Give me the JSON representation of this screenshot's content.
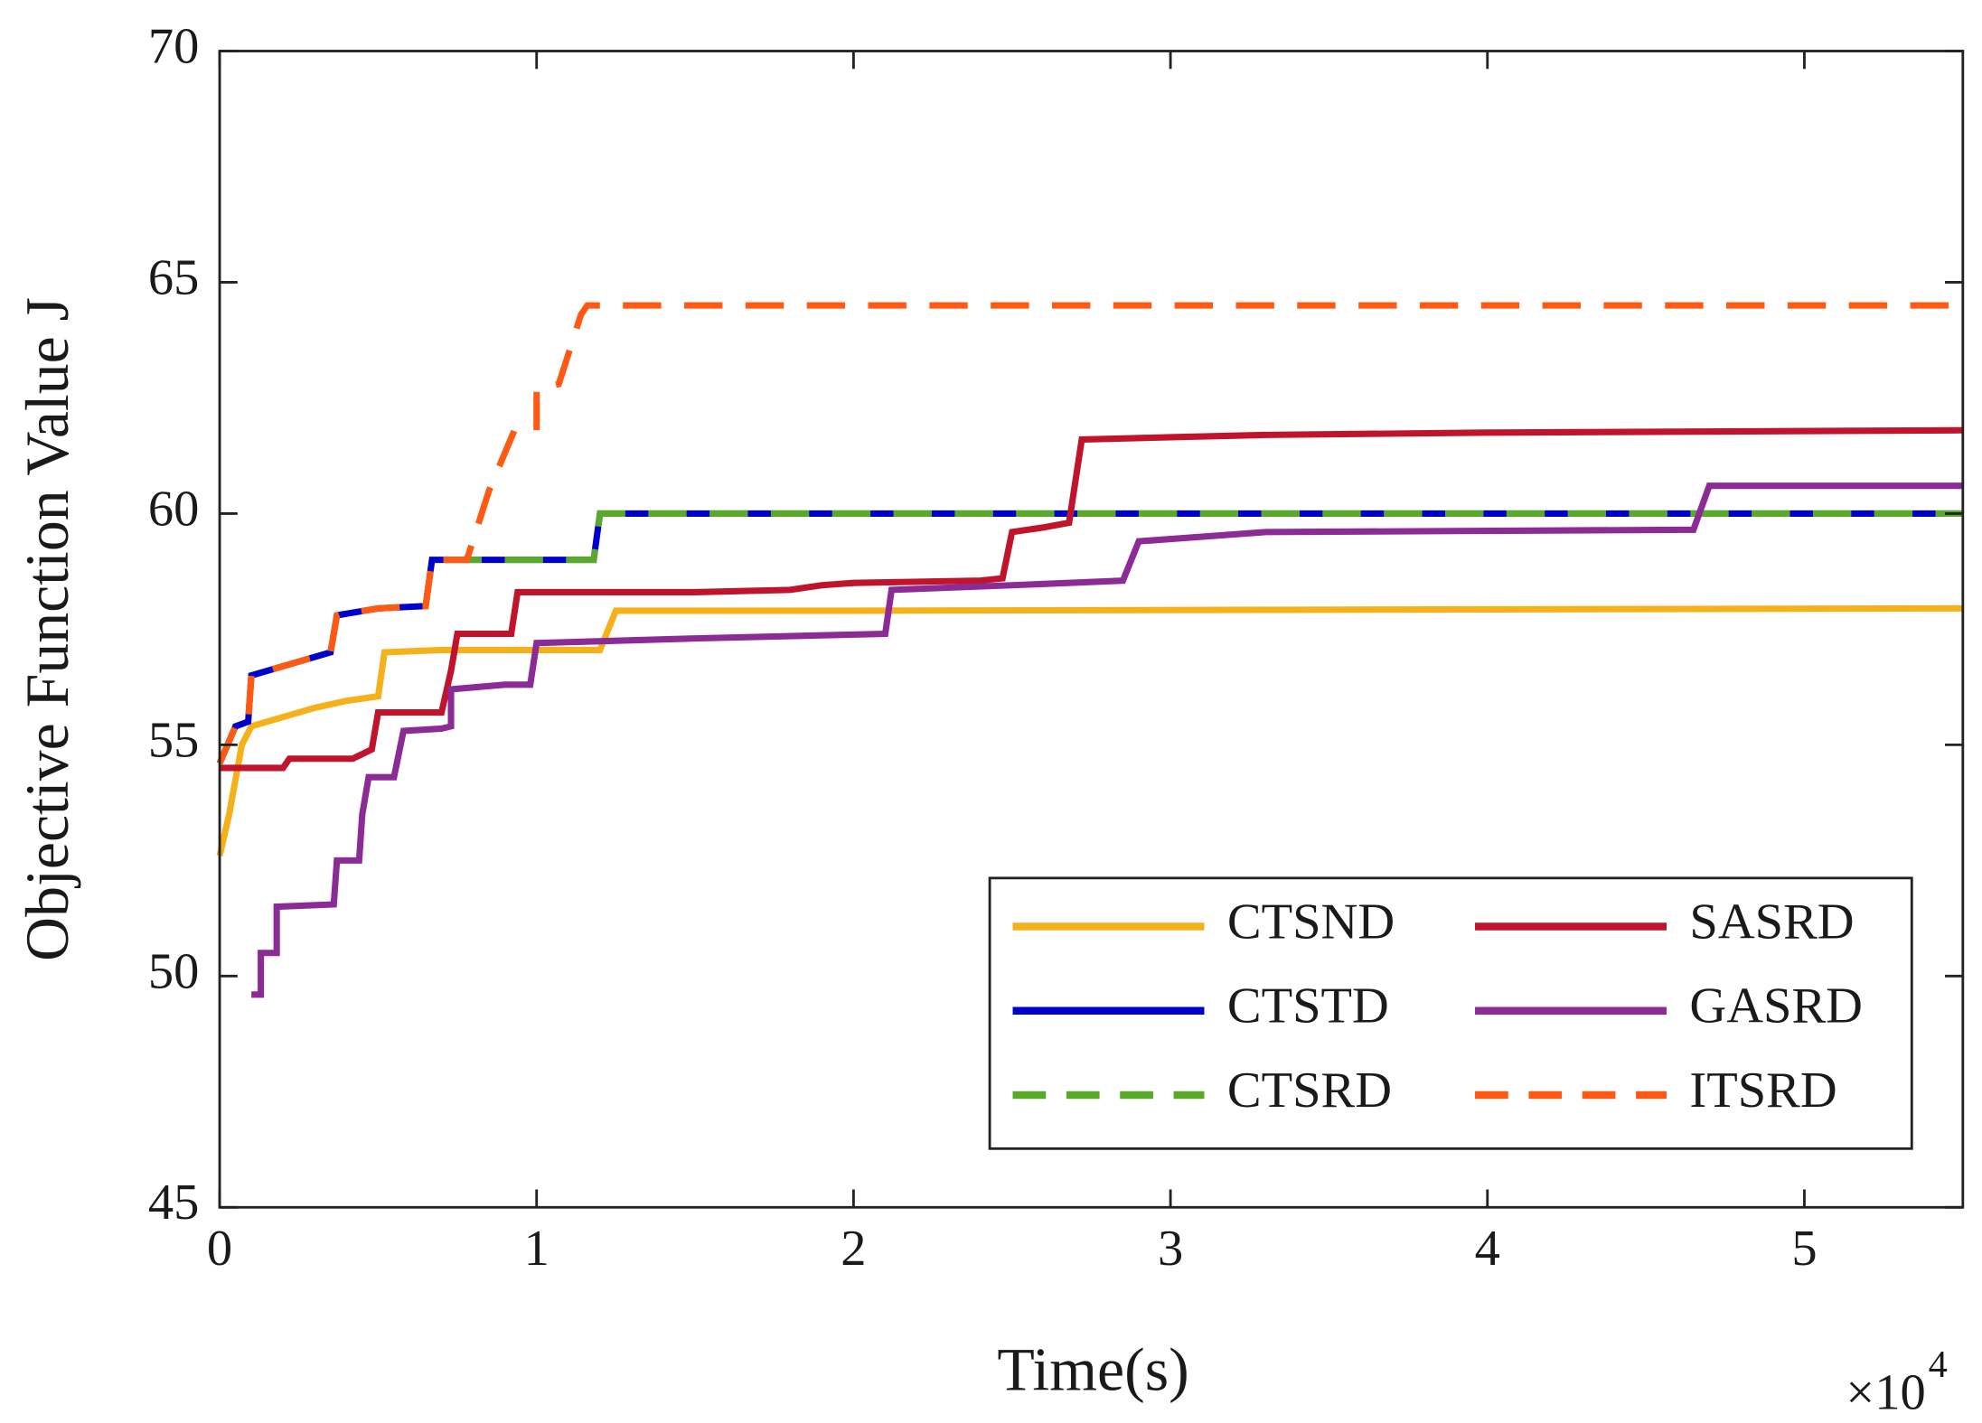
{
  "chart_data": {
    "type": "line",
    "xlabel": "Time(s)",
    "ylabel": "Objective Function Value J",
    "x_multiplier": "×10",
    "x_multiplier_exp": "4",
    "xlim": [
      0,
      5.5
    ],
    "xticks": [
      0,
      1,
      2,
      3,
      4,
      5
    ],
    "ylim": [
      45,
      70
    ],
    "yticks": [
      45,
      50,
      55,
      60,
      65,
      70
    ],
    "legend": "lower right",
    "series": [
      {
        "name": "CTSND",
        "color": "#f5b11a",
        "line_style": "solid",
        "x": [
          0,
          0.03,
          0.07,
          0.1,
          0.2,
          0.3,
          0.4,
          0.5,
          0.52,
          0.7,
          1.2,
          1.25,
          2,
          5.5
        ],
        "values": [
          52.6,
          53.5,
          55.0,
          55.4,
          55.6,
          55.8,
          55.95,
          56.05,
          57.0,
          57.05,
          57.05,
          57.9,
          57.9,
          57.95
        ]
      },
      {
        "name": "CTSTD",
        "color": "#0000cc",
        "line_style": "solid",
        "x": [
          0,
          0.05,
          0.09,
          0.1,
          0.2,
          0.35,
          0.37,
          0.5,
          0.65,
          0.67,
          1.18,
          1.2,
          5.5
        ],
        "values": [
          54.6,
          55.4,
          55.5,
          56.5,
          56.7,
          57.0,
          57.8,
          57.95,
          58.0,
          59.0,
          59.0,
          60.0,
          60.0
        ]
      },
      {
        "name": "CTSRD",
        "color": "#5aaa2a",
        "line_style": "dashed",
        "x": [
          0,
          0.05,
          0.09,
          0.1,
          0.2,
          0.35,
          0.37,
          0.5,
          0.65,
          0.67,
          1.18,
          1.2,
          5.5
        ],
        "values": [
          54.6,
          55.4,
          55.5,
          56.5,
          56.7,
          57.0,
          57.8,
          57.95,
          58.0,
          59.0,
          59.0,
          60.0,
          60.0
        ]
      },
      {
        "name": "SASRD",
        "color": "#c0142d",
        "line_style": "solid",
        "x": [
          0,
          0.2,
          0.22,
          0.42,
          0.48,
          0.5,
          0.7,
          0.73,
          0.75,
          0.92,
          0.94,
          1.5,
          1.8,
          1.9,
          2.0,
          2.4,
          2.47,
          2.5,
          2.6,
          2.68,
          2.72,
          3,
          3.3,
          4,
          5.5
        ],
        "values": [
          54.5,
          54.5,
          54.7,
          54.7,
          54.9,
          55.7,
          55.7,
          56.6,
          57.4,
          57.4,
          58.3,
          58.3,
          58.35,
          58.45,
          58.5,
          58.55,
          58.6,
          59.6,
          59.7,
          59.8,
          61.6,
          61.65,
          61.7,
          61.75,
          61.8
        ]
      },
      {
        "name": "GASRD",
        "color": "#8c2b96",
        "line_style": "solid",
        "x": [
          0.1,
          0.13,
          0.13,
          0.18,
          0.18,
          0.36,
          0.37,
          0.44,
          0.45,
          0.47,
          0.55,
          0.58,
          0.7,
          0.73,
          0.73,
          0.9,
          0.98,
          1.0,
          1.5,
          2.1,
          2.12,
          2.5,
          2.85,
          2.9,
          3.3,
          4.65,
          4.7,
          5.5
        ],
        "values": [
          49.6,
          49.6,
          50.5,
          50.5,
          51.5,
          51.55,
          52.5,
          52.5,
          53.5,
          54.3,
          54.3,
          55.3,
          55.35,
          55.4,
          56.2,
          56.3,
          56.3,
          57.2,
          57.3,
          57.4,
          58.35,
          58.45,
          58.55,
          59.4,
          59.6,
          59.65,
          60.6,
          60.6
        ]
      },
      {
        "name": "ITSRD",
        "color": "#ff5a14",
        "line_style": "dashed",
        "x": [
          0,
          0.05,
          0.09,
          0.1,
          0.2,
          0.35,
          0.37,
          0.5,
          0.65,
          0.67,
          0.78,
          0.85,
          0.93,
          1.0,
          1.0,
          1.07,
          1.14,
          1.16,
          5.5
        ],
        "values": [
          54.6,
          55.4,
          55.5,
          56.5,
          56.7,
          57.0,
          57.8,
          57.95,
          58.0,
          59.0,
          59.0,
          60.5,
          61.8,
          61.8,
          62.7,
          62.8,
          64.3,
          64.5,
          64.5
        ]
      }
    ]
  }
}
